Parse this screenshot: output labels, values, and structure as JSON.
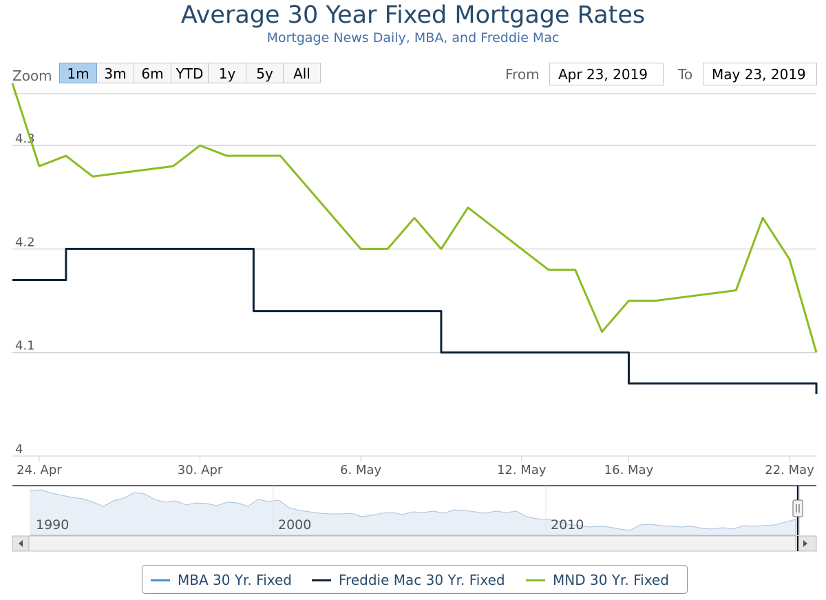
{
  "header": {
    "title": "Average 30 Year Fixed Mortgage Rates",
    "subtitle": "Mortgage News Daily, MBA, and Freddie Mac"
  },
  "range_selector": {
    "zoom_label": "Zoom",
    "buttons": [
      "1m",
      "3m",
      "6m",
      "YTD",
      "1y",
      "5y",
      "All"
    ],
    "active_button": "1m",
    "from_label": "From",
    "from_value": "Apr 23, 2019",
    "to_label": "To",
    "to_value": "May 23, 2019"
  },
  "navigator": {
    "labels": [
      "1990",
      "2000",
      "2010"
    ]
  },
  "legend": {
    "items": [
      {
        "label": "MBA 30 Yr. Fixed",
        "color": "#4a90d9"
      },
      {
        "label": "Freddie Mac 30 Yr. Fixed",
        "color": "#0d233a"
      },
      {
        "label": "MND 30 Yr. Fixed",
        "color": "#8bbc21"
      }
    ]
  },
  "chart_data": {
    "type": "line",
    "title": "Average 30 Year Fixed Mortgage Rates",
    "subtitle": "Mortgage News Daily, MBA, and Freddie Mac",
    "xlim": [
      "2019-04-23",
      "2019-05-23"
    ],
    "ylim": [
      4.0,
      4.35
    ],
    "y_ticks": [
      4,
      4.1,
      4.2,
      4.3
    ],
    "y_tick_labels": [
      "4",
      "4.1",
      "4.2",
      "4.3"
    ],
    "x_ticks": [
      "2019-04-24",
      "2019-04-30",
      "2019-05-06",
      "2019-05-12",
      "2019-05-16",
      "2019-05-22"
    ],
    "x_tick_labels": [
      "24. Apr",
      "30. Apr",
      "6. May",
      "12. May",
      "16. May",
      "22. May"
    ],
    "grid": true,
    "legend_position": "bottom",
    "series": [
      {
        "name": "MBA 30 Yr. Fixed",
        "color": "#4a90d9",
        "points": []
      },
      {
        "name": "Freddie Mac 30 Yr. Fixed",
        "color": "#0d233a",
        "step": true,
        "points": [
          {
            "x": "2019-04-23",
            "y": 4.17
          },
          {
            "x": "2019-04-25",
            "y": 4.2
          },
          {
            "x": "2019-05-02",
            "y": 4.14
          },
          {
            "x": "2019-05-09",
            "y": 4.1
          },
          {
            "x": "2019-05-16",
            "y": 4.07
          },
          {
            "x": "2019-05-23",
            "y": 4.06
          }
        ]
      },
      {
        "name": "MND 30 Yr. Fixed",
        "color": "#8bbc21",
        "points": [
          {
            "x": "2019-04-23",
            "y": 4.36
          },
          {
            "x": "2019-04-24",
            "y": 4.28
          },
          {
            "x": "2019-04-25",
            "y": 4.29
          },
          {
            "x": "2019-04-26",
            "y": 4.27
          },
          {
            "x": "2019-04-29",
            "y": 4.28
          },
          {
            "x": "2019-04-30",
            "y": 4.3
          },
          {
            "x": "2019-05-01",
            "y": 4.29
          },
          {
            "x": "2019-05-02",
            "y": 4.29
          },
          {
            "x": "2019-05-03",
            "y": 4.29
          },
          {
            "x": "2019-05-06",
            "y": 4.2
          },
          {
            "x": "2019-05-07",
            "y": 4.2
          },
          {
            "x": "2019-05-08",
            "y": 4.23
          },
          {
            "x": "2019-05-09",
            "y": 4.2
          },
          {
            "x": "2019-05-10",
            "y": 4.24
          },
          {
            "x": "2019-05-13",
            "y": 4.18
          },
          {
            "x": "2019-05-14",
            "y": 4.18
          },
          {
            "x": "2019-05-15",
            "y": 4.12
          },
          {
            "x": "2019-05-16",
            "y": 4.15
          },
          {
            "x": "2019-05-17",
            "y": 4.15
          },
          {
            "x": "2019-05-20",
            "y": 4.16
          },
          {
            "x": "2019-05-21",
            "y": 4.23
          },
          {
            "x": "2019-05-22",
            "y": 4.19
          },
          {
            "x": "2019-05-23",
            "y": 4.1
          }
        ]
      }
    ]
  }
}
